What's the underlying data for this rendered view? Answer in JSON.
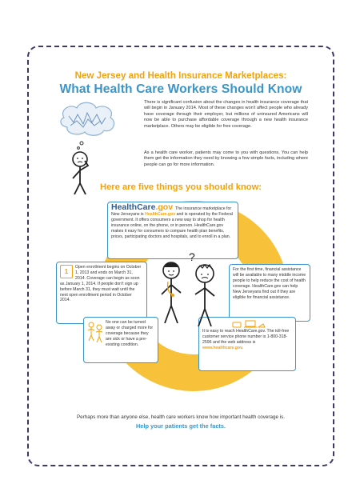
{
  "header": {
    "title_line1": "New Jersey and Health Insurance Marketplaces:",
    "title_line2": "What Health Care Workers Should Know"
  },
  "intro": {
    "paragraph1": "There is significant confusion about the changes in health insurance coverage that will begin in January 2014. Most of these changes won't affect people who already have coverage through their employer, but millions of uninsured Americans will now be able to purchase affordable coverage through a new health insurance marketplace. Others may be eligible for free coverage.",
    "paragraph2": "As a health care worker, patients may come to you with questions. You can help them get the information they need by knowing a few simple facts, including where people can go for more information."
  },
  "section_heading": "Here are five things you should know:",
  "cards": {
    "marketplace": {
      "logo_main": "HealthCare",
      "logo_suffix": ".gov",
      "text_a": "The insurance marketplace for New Jerseyans is ",
      "highlight": "HealthCare.gov",
      "text_b": " and is operated by the Federal government. It offers consumers a new way to shop for health insurance online, on the phone, or in person. HealthCare.gov makes it easy for consumers to compare health plan benefits, prices, participating doctors and hospitals, and to enroll in a plan."
    },
    "enrollment": {
      "calendar_number": "1",
      "text": "Open enrollment begins on October 1, 2013 and ends on March 31, 2014. Coverage can begin as soon as January 1, 2014. If people don't sign up before March 31, they must wait until the next open enrollment period in October 2014."
    },
    "assistance": {
      "text": "For the first time, financial assistance will be available to many middle income people to help reduce the cost of health coverage. HealthCare.gov can help New Jerseyans find out if they are eligible for financial assistance."
    },
    "preexisting": {
      "text": "No one can be turned away or charged more for coverage because they are sick or have a pre-existing condition."
    },
    "contact": {
      "text_a": "It is easy to reach HealthCare.gov. The toll-free customer service phone number is 1-800-318-2596 and the web address is ",
      "link": "www.healthcare.gov",
      "text_b": "."
    }
  },
  "footer": {
    "line1": "Perhaps more than anyone else, health care workers know how important health coverage is.",
    "line2": "Help your patients get the facts."
  },
  "colors": {
    "orange": "#f2a20c",
    "blue": "#3a95c9",
    "navy": "#3d3a6b",
    "ring": "#f7c23a"
  }
}
